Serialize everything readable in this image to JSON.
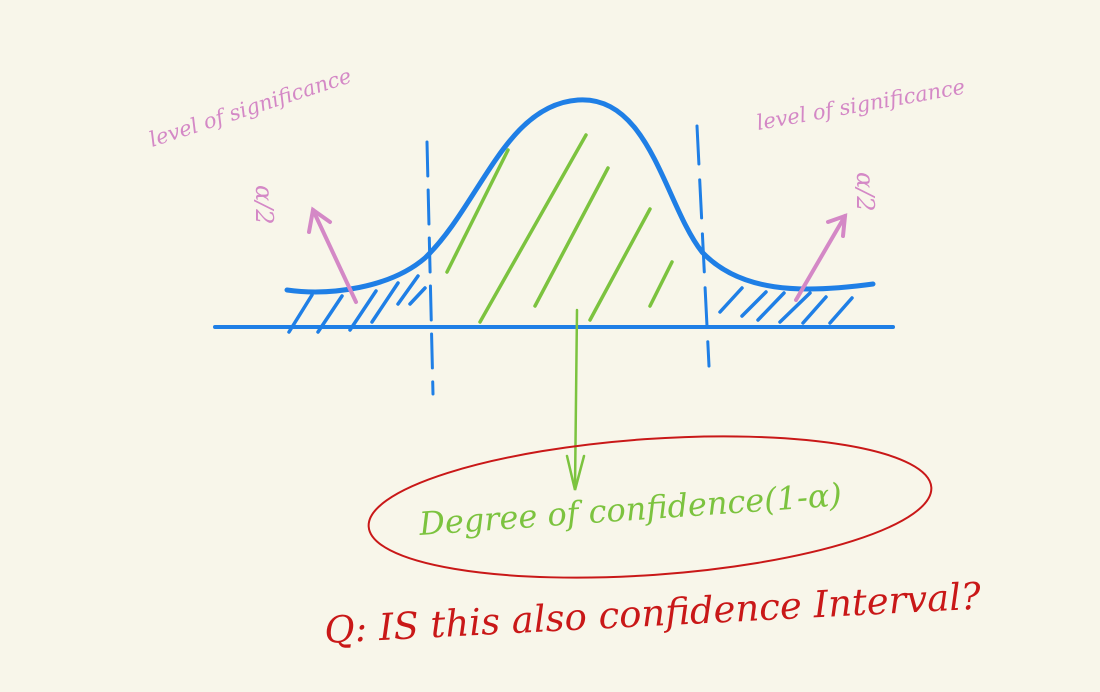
{
  "colors": {
    "background": "#f8f6ea",
    "curve": "#1f7fe6",
    "confidence": "#7cc33f",
    "significance": "#d488c6",
    "question": "#c91818"
  },
  "labels": {
    "left_significance": "level of significance",
    "left_alpha_half": "α/2",
    "right_significance": "level of significance",
    "right_alpha_half": "α/2",
    "confidence": "Degree of confidence(1-α)",
    "question": "Q: IS this also confidence Interval?"
  }
}
